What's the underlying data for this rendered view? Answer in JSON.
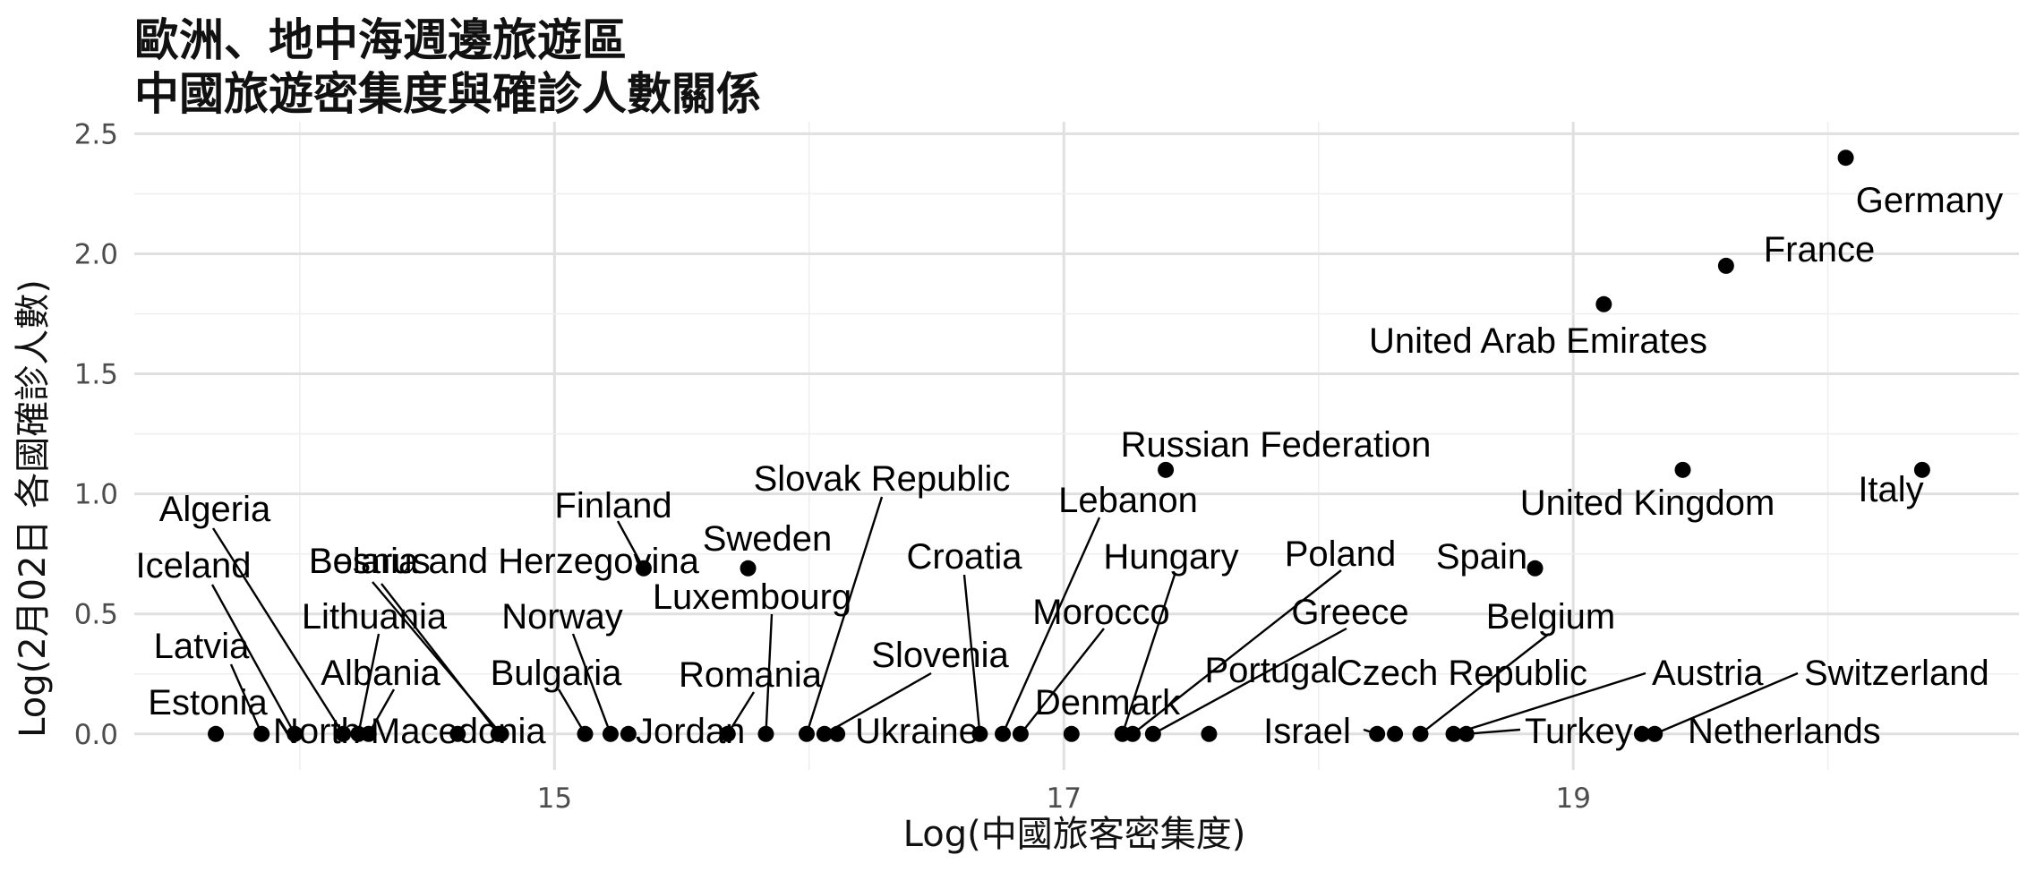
{
  "chart_data": {
    "type": "scatter",
    "title_lines": [
      "歐洲、地中海週邊旅遊區",
      "中國旅遊密集度與確診人數關係"
    ],
    "xlabel": "Log(中國旅客密集度)",
    "ylabel": "Log(2月02日 各國確診人數)",
    "xlim": [
      13.35,
      20.75
    ],
    "ylim": [
      -0.15,
      2.55
    ],
    "x_ticks": [
      15,
      17,
      19
    ],
    "x_tick_labels": [
      "15",
      "17",
      "19"
    ],
    "y_ticks": [
      0,
      0.5,
      1,
      1.5,
      2,
      2.5
    ],
    "y_tick_labels": [
      "0.0",
      "0.5",
      "1.0",
      "1.5",
      "2.0",
      "2.5"
    ],
    "grid": true,
    "points": [
      {
        "label": "Germany",
        "x": 20.07,
        "y": 2.4
      },
      {
        "label": "France",
        "x": 19.6,
        "y": 1.95
      },
      {
        "label": "United Arab Emirates",
        "x": 19.12,
        "y": 1.79
      },
      {
        "label": "Russian Federation",
        "x": 17.4,
        "y": 1.1
      },
      {
        "label": "United Kingdom",
        "x": 19.43,
        "y": 1.1
      },
      {
        "label": "Italy",
        "x": 20.37,
        "y": 1.1
      },
      {
        "label": "Spain",
        "x": 18.85,
        "y": 0.69
      },
      {
        "label": "Finland",
        "x": 15.35,
        "y": 0.69
      },
      {
        "label": "Sweden",
        "x": 15.76,
        "y": 0.69
      },
      {
        "label": "Estonia",
        "x": 13.67,
        "y": 0.0
      },
      {
        "label": "Latvia",
        "x": 13.85,
        "y": 0.0
      },
      {
        "label": "Iceland",
        "x": 13.98,
        "y": 0.0
      },
      {
        "label": "Algeria",
        "x": 14.17,
        "y": 0.0
      },
      {
        "label": "Lithuania",
        "x": 14.23,
        "y": 0.0
      },
      {
        "label": "Albania",
        "x": 14.27,
        "y": 0.0
      },
      {
        "label": "North Macedonia",
        "x": 14.62,
        "y": 0.0
      },
      {
        "label": "Bosnia and Herzegovina",
        "x": 14.78,
        "y": 0.0
      },
      {
        "label": "Belarus",
        "x": 14.79,
        "y": 0.0
      },
      {
        "label": "Bulgaria",
        "x": 15.12,
        "y": 0.0
      },
      {
        "label": "Norway",
        "x": 15.22,
        "y": 0.0
      },
      {
        "label": "Jordan",
        "x": 15.29,
        "y": 0.0
      },
      {
        "label": "Romania",
        "x": 15.68,
        "y": 0.0
      },
      {
        "label": "Luxembourg",
        "x": 15.83,
        "y": 0.0
      },
      {
        "label": "Slovak Republic",
        "x": 15.99,
        "y": 0.0
      },
      {
        "label": "Slovenia",
        "x": 16.06,
        "y": 0.0
      },
      {
        "label": "Ukraine",
        "x": 16.11,
        "y": 0.0
      },
      {
        "label": "Croatia",
        "x": 16.67,
        "y": 0.0
      },
      {
        "label": "Lebanon",
        "x": 16.76,
        "y": 0.0
      },
      {
        "label": "Morocco",
        "x": 16.83,
        "y": 0.0
      },
      {
        "label": "Denmark",
        "x": 17.03,
        "y": 0.0
      },
      {
        "label": "Hungary",
        "x": 17.23,
        "y": 0.0
      },
      {
        "label": "Poland",
        "x": 17.27,
        "y": 0.0
      },
      {
        "label": "Greece",
        "x": 17.35,
        "y": 0.0
      },
      {
        "label": "Portugal",
        "x": 17.57,
        "y": 0.0
      },
      {
        "label": "Israel",
        "x": 18.23,
        "y": 0.0
      },
      {
        "label": "Czech Republic",
        "x": 18.3,
        "y": 0.0
      },
      {
        "label": "Belgium",
        "x": 18.4,
        "y": 0.0
      },
      {
        "label": "Austria",
        "x": 18.53,
        "y": 0.0
      },
      {
        "label": "Turkey",
        "x": 18.58,
        "y": 0.0
      },
      {
        "label": "Netherlands",
        "x": 19.27,
        "y": 0.0
      },
      {
        "label": "Switzerland",
        "x": 19.32,
        "y": 0.0
      }
    ]
  }
}
